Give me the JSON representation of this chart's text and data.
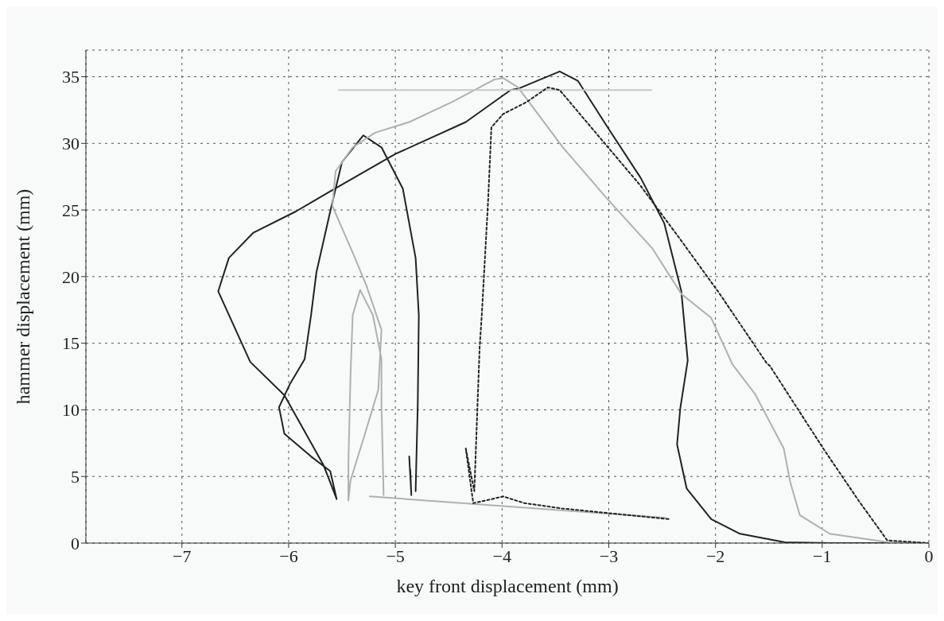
{
  "chart_data": {
    "type": "line",
    "xlabel": "key front displacement (mm)",
    "ylabel": "hammer displacement (mm)",
    "xlim": [
      -7.9,
      0
    ],
    "ylim": [
      0,
      37
    ],
    "xticks": [
      {
        "value": -7,
        "label": "−7"
      },
      {
        "value": -6,
        "label": "−6"
      },
      {
        "value": -5,
        "label": "−5"
      },
      {
        "value": -4,
        "label": "−4"
      },
      {
        "value": -3,
        "label": "−3"
      },
      {
        "value": -2,
        "label": "−2"
      },
      {
        "value": -1,
        "label": "−1"
      },
      0
    ],
    "yticks": [
      0,
      5,
      10,
      15,
      20,
      25,
      30,
      35
    ],
    "grid": true,
    "marker": "none",
    "series": [
      {
        "color": "#222222",
        "line_style": "solid",
        "x": [
          -4.81,
          -4.79,
          -4.78,
          -4.81,
          -4.93,
          -5.13,
          -5.3,
          -5.5,
          -5.61,
          -5.74,
          -5.79,
          -5.85,
          -5.99,
          -6.09,
          -6.04,
          -5.79,
          -5.61,
          -5.55,
          -5.67,
          -6.04,
          -6.36,
          -6.66,
          -6.56,
          -6.33,
          -5.93,
          -5.61,
          -5,
          -4.34,
          -3.92,
          -3.85,
          -3.46,
          -3.29,
          -3.01,
          -2.7,
          -2.48,
          -2.32,
          -2.26,
          -2.33,
          -2.36,
          -2.27,
          -2.04,
          -1.77,
          -1.35,
          -0.93,
          0
        ],
        "values": [
          3.9,
          10.4,
          17.1,
          21.4,
          26.6,
          29.7,
          30.6,
          28.6,
          24.9,
          20.3,
          17.1,
          13.8,
          11.9,
          10.2,
          8.2,
          6.5,
          5.4,
          3.3,
          5.8,
          11.1,
          13.6,
          18.9,
          21.4,
          23.3,
          24.9,
          26.4,
          29.2,
          31.6,
          34,
          34.1,
          35.4,
          34.7,
          31.2,
          27.4,
          24,
          18.9,
          13.7,
          10.1,
          7.4,
          4.1,
          1.8,
          0.7,
          0.06,
          0,
          0
        ]
      },
      {
        "color": "#222222",
        "line_style": "solid",
        "x": [
          -4.87,
          -4.85,
          -4.86
        ],
        "values": [
          6.5,
          3.6,
          5.5
        ]
      },
      {
        "color": "#b0b0b0",
        "line_style": "solid",
        "x": [
          -5.11,
          -5.13,
          -5.13,
          -5.21,
          -5.33,
          -5.4,
          -5.42,
          -5.44,
          -5.44,
          -5.42,
          -5.3,
          -5.16,
          -5.13,
          -5.27,
          -5.4,
          -5.59,
          -5.56,
          -5.4,
          -5.19,
          -4.87,
          -4.47,
          -4.07,
          -3.99,
          -3.85,
          -3.43,
          -3.01,
          -2.59,
          -2.32,
          -2.04,
          -1.84,
          -1.63,
          -1.36,
          -1.3,
          -1.21,
          -0.93,
          -0.38,
          0
        ],
        "values": [
          3.6,
          10.4,
          13.8,
          17.1,
          19,
          17.1,
          12.6,
          6,
          3.2,
          4.7,
          7.8,
          11.5,
          16,
          19.3,
          21.8,
          25.3,
          27.9,
          29.7,
          30.8,
          31.6,
          33.1,
          34.8,
          34.9,
          34.2,
          29.7,
          25.8,
          22.1,
          18.7,
          16.9,
          13.4,
          11.2,
          7.1,
          4.6,
          2.1,
          0.7,
          0.06,
          0
        ]
      },
      {
        "color": "#b0b0b0",
        "line_style": "solid",
        "x": [
          -5.24,
          -2.47
        ],
        "values": [
          3.5,
          1.9
        ]
      },
      {
        "color": "#c8c8c8",
        "line_style": "solid",
        "x": [
          -5.53,
          -2.6
        ],
        "values": [
          34,
          34
        ]
      },
      {
        "color": "#222222",
        "line_style": "dotted",
        "x": [
          -2.44,
          -3.44,
          -3.79,
          -3.99,
          -4.15,
          -4.27,
          -4.34,
          -4.26,
          -4.24,
          -4.21,
          -4.19,
          -4.13,
          -4.1,
          -3.99,
          -3.77,
          -3.57,
          -3.46,
          -3.07,
          -2.71,
          -2.33,
          -1.96,
          -1.52,
          -1.49,
          -0.99,
          -0.66,
          -0.39,
          0
        ],
        "values": [
          1.8,
          2.6,
          3,
          3.5,
          3.2,
          3,
          7.1,
          3.9,
          8.2,
          14.7,
          17.1,
          25.8,
          31.2,
          32.2,
          33.1,
          34.2,
          34,
          30.3,
          26.9,
          22.8,
          18.7,
          13.5,
          13.3,
          7.1,
          3.2,
          0.2,
          0
        ]
      }
    ]
  }
}
